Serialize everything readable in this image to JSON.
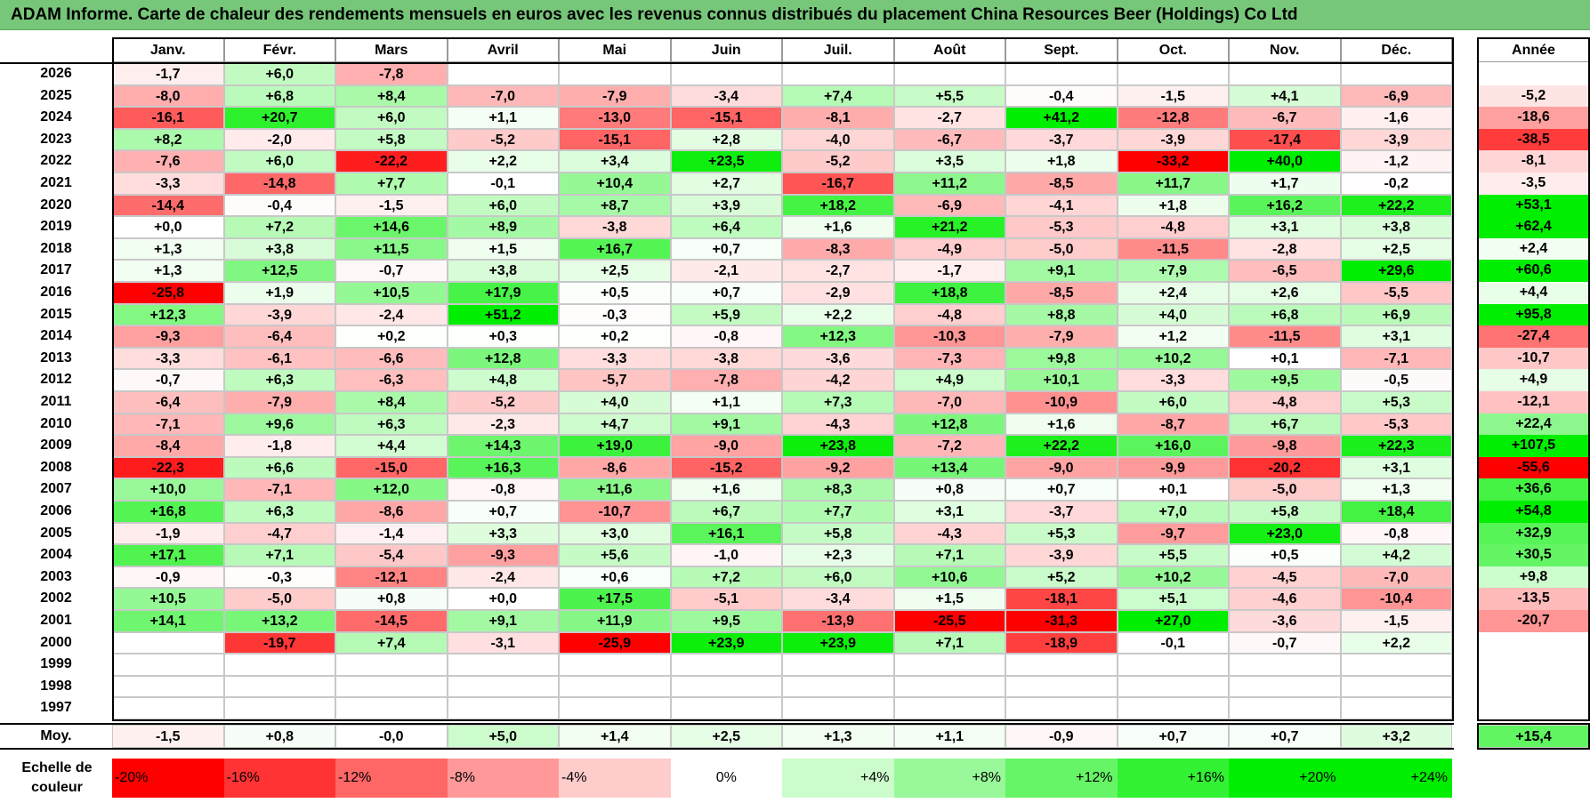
{
  "title": "ADAM Informe. Carte de chaleur des rendements mensuels en euros avec les revenus connus distribués du placement China Resources Beer (Holdings) Co Ltd",
  "chart_data": {
    "type": "heatmap",
    "months": [
      "Janv.",
      "Févr.",
      "Mars",
      "Avril",
      "Mai",
      "Juin",
      "Juil.",
      "Août",
      "Sept.",
      "Oct.",
      "Nov.",
      "Déc."
    ],
    "year_header": "Année",
    "rows": [
      {
        "year": "2026",
        "m": [
          -1.7,
          6.0,
          -7.8,
          null,
          null,
          null,
          null,
          null,
          null,
          null,
          null,
          null
        ],
        "y": null
      },
      {
        "year": "2025",
        "m": [
          -8.0,
          6.8,
          8.4,
          -7.0,
          -7.9,
          -3.4,
          7.4,
          5.5,
          -0.4,
          -1.5,
          4.1,
          -6.9
        ],
        "y": -5.2
      },
      {
        "year": "2024",
        "m": [
          -16.1,
          20.7,
          6.0,
          1.1,
          -13.0,
          -15.1,
          -8.1,
          -2.7,
          41.2,
          -12.8,
          -6.7,
          -1.6
        ],
        "y": -18.6
      },
      {
        "year": "2023",
        "m": [
          8.2,
          -2.0,
          5.8,
          -5.2,
          -15.1,
          2.8,
          -4.0,
          -6.7,
          -3.7,
          -3.9,
          -17.4,
          -3.9
        ],
        "y": -38.5
      },
      {
        "year": "2022",
        "m": [
          -7.6,
          6.0,
          -22.2,
          2.2,
          3.4,
          23.5,
          -5.2,
          3.5,
          1.8,
          -33.2,
          40.0,
          -1.2
        ],
        "y": -8.1
      },
      {
        "year": "2021",
        "m": [
          -3.3,
          -14.8,
          7.7,
          -0.1,
          10.4,
          2.7,
          -16.7,
          11.2,
          -8.5,
          11.7,
          1.7,
          -0.2
        ],
        "y": -3.5
      },
      {
        "year": "2020",
        "m": [
          -14.4,
          -0.4,
          -1.5,
          6.0,
          8.7,
          3.9,
          18.2,
          -6.9,
          -4.1,
          1.8,
          16.2,
          22.2
        ],
        "y": 53.1
      },
      {
        "year": "2019",
        "m": [
          0.0,
          7.2,
          14.6,
          8.9,
          -3.8,
          6.4,
          1.6,
          21.2,
          -5.3,
          -4.8,
          3.1,
          3.8
        ],
        "y": 62.4
      },
      {
        "year": "2018",
        "m": [
          1.3,
          3.8,
          11.5,
          1.5,
          16.7,
          0.7,
          -8.3,
          -4.9,
          -5.0,
          -11.5,
          -2.8,
          2.5
        ],
        "y": 2.4
      },
      {
        "year": "2017",
        "m": [
          1.3,
          12.5,
          -0.7,
          3.8,
          2.5,
          -2.1,
          -2.7,
          -1.7,
          9.1,
          7.9,
          -6.5,
          29.6
        ],
        "y": 60.6
      },
      {
        "year": "2016",
        "m": [
          -25.8,
          1.9,
          10.5,
          17.9,
          0.5,
          0.7,
          -2.9,
          18.8,
          -8.5,
          2.4,
          2.6,
          -5.5
        ],
        "y": 4.4
      },
      {
        "year": "2015",
        "m": [
          12.3,
          -3.9,
          -2.4,
          51.2,
          -0.3,
          5.9,
          2.2,
          -4.8,
          8.8,
          4.0,
          6.8,
          6.9
        ],
        "y": 95.8
      },
      {
        "year": "2014",
        "m": [
          -9.3,
          -6.4,
          0.2,
          0.3,
          0.2,
          -0.8,
          12.3,
          -10.3,
          -7.9,
          1.2,
          -11.5,
          3.1
        ],
        "y": -27.4
      },
      {
        "year": "2013",
        "m": [
          -3.3,
          -6.1,
          -6.6,
          12.8,
          -3.3,
          -3.8,
          -3.6,
          -7.3,
          9.8,
          10.2,
          0.1,
          -7.1
        ],
        "y": -10.7
      },
      {
        "year": "2012",
        "m": [
          -0.7,
          6.3,
          -6.3,
          4.8,
          -5.7,
          -7.8,
          -4.2,
          4.9,
          10.1,
          -3.3,
          9.5,
          -0.5
        ],
        "y": 4.9
      },
      {
        "year": "2011",
        "m": [
          -6.4,
          -7.9,
          8.4,
          -5.2,
          4.0,
          1.1,
          7.3,
          -7.0,
          -10.9,
          6.0,
          -4.8,
          5.3
        ],
        "y": -12.1
      },
      {
        "year": "2010",
        "m": [
          -7.1,
          9.6,
          6.3,
          -2.3,
          4.7,
          9.1,
          -4.3,
          12.8,
          1.6,
          -8.7,
          6.7,
          -5.3
        ],
        "y": 22.4
      },
      {
        "year": "2009",
        "m": [
          -8.4,
          -1.8,
          4.4,
          14.3,
          19.0,
          -9.0,
          23.8,
          -7.2,
          22.2,
          16.0,
          -9.8,
          22.3
        ],
        "y": 107.5
      },
      {
        "year": "2008",
        "m": [
          -22.3,
          6.6,
          -15.0,
          16.3,
          -8.6,
          -15.2,
          -9.2,
          13.4,
          -9.0,
          -9.9,
          -20.2,
          3.1
        ],
        "y": -55.6
      },
      {
        "year": "2007",
        "m": [
          10.0,
          -7.1,
          12.0,
          -0.8,
          11.6,
          1.6,
          8.3,
          0.8,
          0.7,
          0.1,
          -5.0,
          1.3
        ],
        "y": 36.6
      },
      {
        "year": "2006",
        "m": [
          16.8,
          6.3,
          -8.6,
          0.7,
          -10.7,
          6.7,
          7.7,
          3.1,
          -3.7,
          7.0,
          5.8,
          18.4
        ],
        "y": 54.8
      },
      {
        "year": "2005",
        "m": [
          -1.9,
          -4.7,
          -1.4,
          3.3,
          3.0,
          16.1,
          5.8,
          -4.3,
          5.3,
          -9.7,
          23.0,
          -0.8
        ],
        "y": 32.9
      },
      {
        "year": "2004",
        "m": [
          17.1,
          7.1,
          -5.4,
          -9.3,
          5.6,
          -1.0,
          2.3,
          7.1,
          -3.9,
          5.5,
          0.5,
          4.2
        ],
        "y": 30.5
      },
      {
        "year": "2003",
        "m": [
          -0.9,
          -0.3,
          -12.1,
          -2.4,
          0.6,
          7.2,
          6.0,
          10.6,
          5.2,
          10.2,
          -4.5,
          -7.0
        ],
        "y": 9.8
      },
      {
        "year": "2002",
        "m": [
          10.5,
          -5.0,
          0.8,
          0.0,
          17.5,
          -5.1,
          -3.4,
          1.5,
          -18.1,
          5.1,
          -4.6,
          -10.4
        ],
        "y": -13.5
      },
      {
        "year": "2001",
        "m": [
          14.1,
          13.2,
          -14.5,
          9.1,
          11.9,
          9.5,
          -13.9,
          -25.5,
          -31.3,
          27.0,
          -3.6,
          -1.5
        ],
        "y": -20.7
      },
      {
        "year": "2000",
        "m": [
          null,
          -19.7,
          7.4,
          -3.1,
          -25.9,
          23.9,
          23.9,
          7.1,
          -18.9,
          -0.1,
          -0.7,
          2.2
        ],
        "y": null
      },
      {
        "year": "1999",
        "m": [
          null,
          null,
          null,
          null,
          null,
          null,
          null,
          null,
          null,
          null,
          null,
          null
        ],
        "y": null
      },
      {
        "year": "1998",
        "m": [
          null,
          null,
          null,
          null,
          null,
          null,
          null,
          null,
          null,
          null,
          null,
          null
        ],
        "y": null
      },
      {
        "year": "1997",
        "m": [
          null,
          null,
          null,
          null,
          null,
          null,
          null,
          null,
          null,
          null,
          null,
          null
        ],
        "y": null
      }
    ],
    "average": {
      "label": "Moy.",
      "m": [
        -1.5,
        0.8,
        -0.0,
        5.0,
        1.4,
        2.5,
        1.3,
        1.1,
        -0.9,
        0.7,
        0.7,
        3.2
      ],
      "y": 15.4
    },
    "scale": {
      "label_line1": "Echelle de",
      "label_line2": "couleur",
      "stops": [
        "-20%",
        "-16%",
        "-12%",
        "-8%",
        "-4%",
        "0%",
        "+4%",
        "+8%",
        "+12%",
        "+16%",
        "+20%",
        "+24%"
      ],
      "stop_values": [
        -20,
        -16,
        -12,
        -8,
        -4,
        0,
        4,
        8,
        12,
        16,
        20,
        24
      ]
    },
    "colors": {
      "negative": "#ff0000",
      "positive": "#00ee00",
      "neutral": "#ffffff",
      "title_bg": "#77c77a"
    }
  }
}
